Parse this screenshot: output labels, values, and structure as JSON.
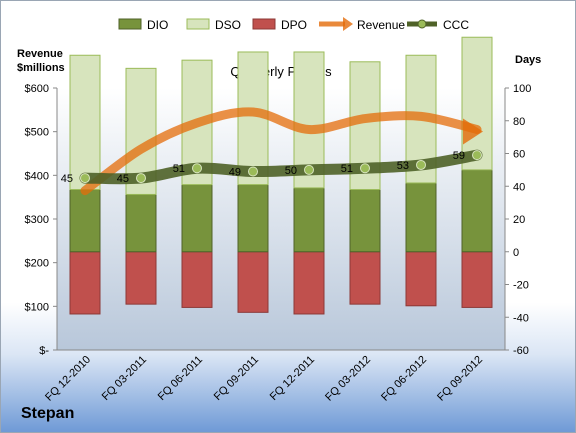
{
  "company": "Stepan",
  "chart_data": {
    "type": "bar",
    "title": "Quarterly Periods",
    "left_axis_label_line1": "Revenue",
    "left_axis_label_line2": "$millions",
    "right_axis_label": "Days",
    "categories": [
      "FQ 12-2010",
      "FQ 03-2011",
      "FQ 06-2011",
      "FQ 09-2011",
      "FQ 12-2011",
      "FQ 03-2012",
      "FQ 06-2012",
      "FQ 09-2012"
    ],
    "left_ticks": [
      "$-",
      "$100",
      "$200",
      "$300",
      "$400",
      "$500",
      "$600"
    ],
    "right_ticks": [
      "-60",
      "-40",
      "-20",
      "0",
      "20",
      "40",
      "60",
      "80",
      "100"
    ],
    "left_ylim": [
      0,
      600
    ],
    "right_ylim": [
      -60,
      100
    ],
    "grid": false,
    "legend_position": "top",
    "series": [
      {
        "name": "DIO",
        "color": "#77933c",
        "axis": "days",
        "values": [
          38,
          35,
          41,
          41,
          39,
          38,
          42,
          50
        ]
      },
      {
        "name": "DSO",
        "color": "#d7e4bd",
        "axis": "days",
        "values": [
          82,
          77,
          76,
          81,
          83,
          78,
          78,
          81
        ]
      },
      {
        "name": "DPO",
        "color": "#c0504d",
        "axis": "days",
        "values": [
          -38,
          -32,
          -34,
          -37,
          -38,
          -32,
          -33,
          -34
        ]
      },
      {
        "name": "Revenue",
        "color": "#e46c0a",
        "axis": "revenue",
        "values": [
          365,
          460,
          520,
          545,
          505,
          530,
          535,
          505
        ]
      },
      {
        "name": "CCC",
        "color": "#4f6228",
        "axis": "days",
        "values": [
          45,
          45,
          51,
          49,
          50,
          51,
          53,
          59
        ]
      }
    ],
    "ccc_labels": [
      "45",
      "45",
      "51",
      "49",
      "50",
      "51",
      "53",
      "59"
    ]
  }
}
